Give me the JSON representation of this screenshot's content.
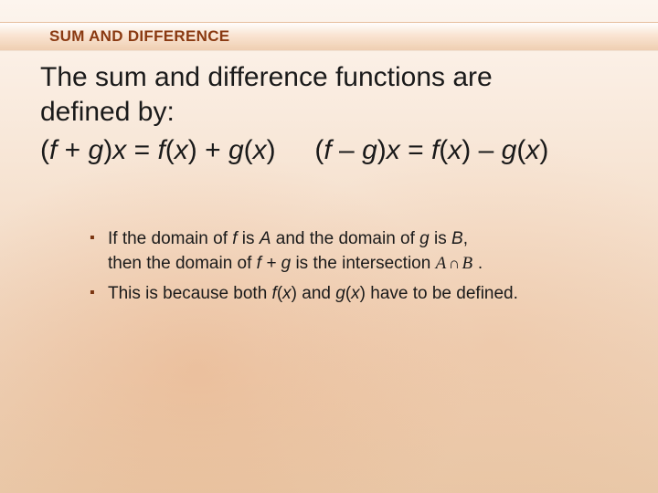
{
  "colors": {
    "heading": "#8a3a12",
    "bullet_marker": "#7a3410",
    "body_text": "#1a1a1a",
    "bg_top": "#fdf5ee",
    "bg_bottom": "#e9c8a8"
  },
  "typography": {
    "heading_size_pt": 13,
    "body_size_pt": 22,
    "bullet_size_pt": 14,
    "heading_weight": "bold",
    "family": "Arial"
  },
  "title": "SUM AND DIFFERENCE",
  "definition_line1": "The sum and difference functions are",
  "definition_line2": "defined by:",
  "eq": {
    "lp1": "(",
    "f": "f",
    "plus": " + ",
    "g": "g",
    "rp_x_eq": ")",
    "x": "x",
    "eq": " = ",
    "fx_open": "(",
    "fx_close": ")",
    "minus": " – "
  },
  "bullets": {
    "b1_a": "If the domain of ",
    "b1_f": "f",
    "b1_b": " is ",
    "b1_A": "A",
    "b1_c": " and the domain of ",
    "b1_g": "g",
    "b1_d": " is ",
    "b1_B": "B",
    "b1_e": ",",
    "b1_line2a": "then the domain of ",
    "b1_fg": "f + g",
    "b1_line2b": " is the intersection ",
    "b1_inter_A": "A",
    "b1_inter_sym": "∩",
    "b1_inter_B": "B",
    "b1_period": " .",
    "b2_a": "This is because both ",
    "b2_fx": "f",
    "b2_b": "(",
    "b2_x1": "x",
    "b2_c": ") and ",
    "b2_gx": "g",
    "b2_d": "(",
    "b2_x2": "x",
    "b2_e": ") have to be defined."
  }
}
